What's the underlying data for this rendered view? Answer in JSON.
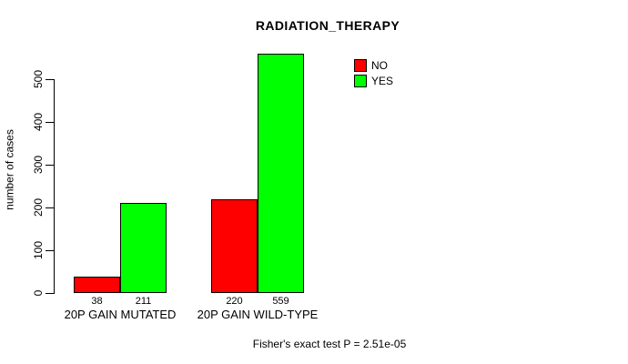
{
  "footer": "Fisher's exact test P = 2.51e-05",
  "chart_data": {
    "type": "bar",
    "title": "RADIATION_THERAPY",
    "xlabel": "",
    "ylabel": "number of cases",
    "ylim": [
      0,
      560
    ],
    "yticks": [
      0,
      100,
      200,
      300,
      400,
      500
    ],
    "grid": false,
    "legend_position": "top-right",
    "bar_border_color": "#000000",
    "categories": [
      "20P GAIN MUTATED",
      "20P GAIN WILD-TYPE"
    ],
    "series": [
      {
        "name": "NO",
        "color": "#FF0000",
        "values": [
          38,
          220
        ]
      },
      {
        "name": "YES",
        "color": "#00FF00",
        "values": [
          211,
          559
        ]
      }
    ],
    "value_labels": [
      [
        38,
        211
      ],
      [
        220,
        559
      ]
    ]
  }
}
